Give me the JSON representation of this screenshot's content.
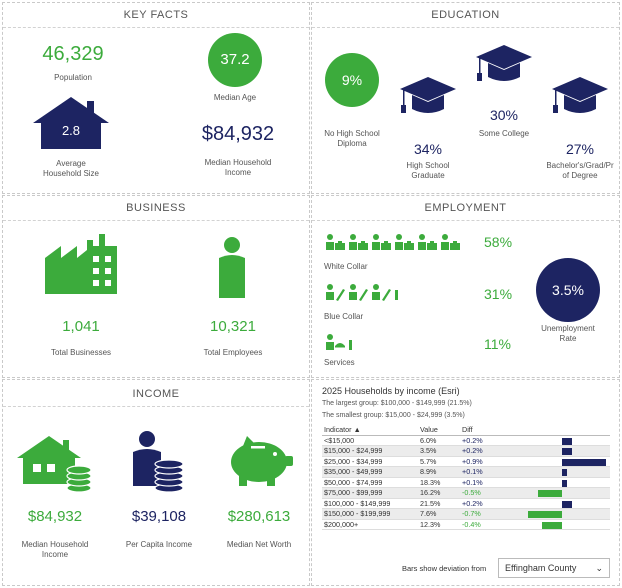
{
  "key_facts": {
    "title": "KEY FACTS",
    "population_value": "46,329",
    "population_label": "Population",
    "median_age_value": "37.2",
    "median_age_label": "Median Age",
    "household_size_value": "2.8",
    "household_size_label_1": "Average",
    "household_size_label_2": "Household Size",
    "median_income_value": "$84,932",
    "median_income_label_1": "Median Household",
    "median_income_label_2": "Income"
  },
  "education": {
    "title": "EDUCATION",
    "no_hs_value": "9%",
    "no_hs_label_1": "No High School",
    "no_hs_label_2": "Diploma",
    "hs_value": "34%",
    "hs_label_1": "High School",
    "hs_label_2": "Graduate",
    "college_value": "30%",
    "college_label": "Some College",
    "bachelor_value": "27%",
    "bachelor_label_1": "Bachelor's/Grad/Pr",
    "bachelor_label_2": "of Degree"
  },
  "business": {
    "title": "BUSINESS",
    "total_businesses_value": "1,041",
    "total_businesses_label": "Total Businesses",
    "total_employees_value": "10,321",
    "total_employees_label": "Total Employees"
  },
  "employment": {
    "title": "EMPLOYMENT",
    "white_collar_value": "58%",
    "white_collar_label": "White Collar",
    "blue_collar_value": "31%",
    "blue_collar_label": "Blue Collar",
    "services_value": "11%",
    "services_label": "Services",
    "unemployment_value": "3.5%",
    "unemployment_label_1": "Unemployment",
    "unemployment_label_2": "Rate"
  },
  "income": {
    "title": "INCOME",
    "median_hh_value": "$84,932",
    "median_hh_label_1": "Median Household",
    "median_hh_label_2": "Income",
    "per_capita_value": "$39,108",
    "per_capita_label": "Per Capita Income",
    "net_worth_value": "$280,613",
    "net_worth_label": "Median Net Worth"
  },
  "households": {
    "title": "2025 Households by income (Esri)",
    "largest": "The largest group: $100,000 - $149,999 (21.5%)",
    "smallest": "The smallest group: $15,000 - $24,999 (3.5%)",
    "columns": [
      "Indicator ▲",
      "Value",
      "Diff"
    ],
    "rows": [
      {
        "indicator": "<$15,000",
        "value": "6.0%",
        "diff": "+0.2%",
        "diff_num": 0.2
      },
      {
        "indicator": "$15,000 - $24,999",
        "value": "3.5%",
        "diff": "+0.2%",
        "diff_num": 0.2
      },
      {
        "indicator": "$25,000 - $34,999",
        "value": "5.7%",
        "diff": "+0.9%",
        "diff_num": 0.9
      },
      {
        "indicator": "$35,000 - $49,999",
        "value": "8.9%",
        "diff": "+0.1%",
        "diff_num": 0.1
      },
      {
        "indicator": "$50,000 - $74,999",
        "value": "18.3%",
        "diff": "+0.1%",
        "diff_num": 0.1
      },
      {
        "indicator": "$75,000 - $99,999",
        "value": "16.2%",
        "diff": "-0.5%",
        "diff_num": -0.5
      },
      {
        "indicator": "$100,000 - $149,999",
        "value": "21.5%",
        "diff": "+0.2%",
        "diff_num": 0.2
      },
      {
        "indicator": "$150,000 - $199,999",
        "value": "7.6%",
        "diff": "-0.7%",
        "diff_num": -0.7
      },
      {
        "indicator": "$200,000+",
        "value": "12.3%",
        "diff": "-0.4%",
        "diff_num": -0.4
      }
    ],
    "deviation_label": "Bars show deviation from",
    "deviation_select": "Effingham County"
  },
  "colors": {
    "green": "#3cab3c",
    "navy": "#1d2462"
  }
}
